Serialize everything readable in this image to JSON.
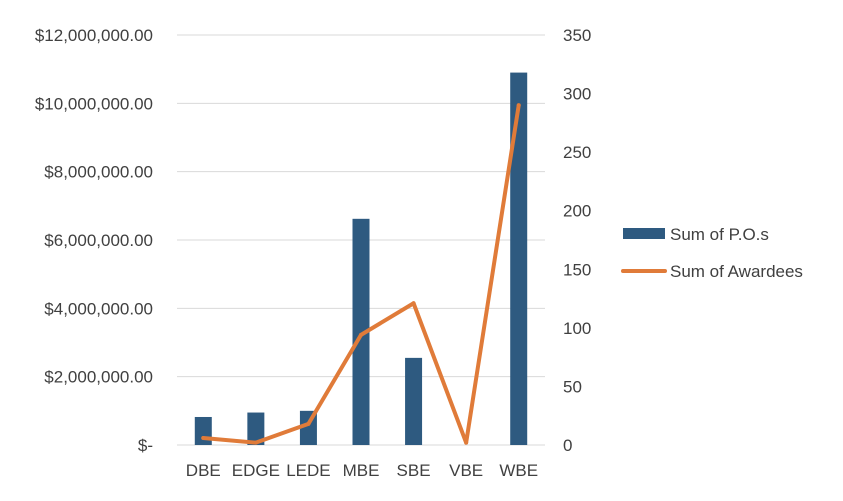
{
  "chart_data": {
    "type": "bar",
    "categories": [
      "DBE",
      "EDGE",
      "LEDE",
      "MBE",
      "SBE",
      "VBE",
      "WBE"
    ],
    "series": [
      {
        "name": "Sum of P.O.s",
        "type": "bar",
        "axis": "left",
        "values": [
          820000,
          950000,
          1000000,
          6620000,
          2550000,
          0,
          10900000
        ]
      },
      {
        "name": "Sum of Awardees",
        "type": "line",
        "axis": "right",
        "values": [
          6,
          2,
          18,
          94,
          121,
          2,
          290
        ]
      }
    ],
    "y_left": {
      "ylim": [
        0,
        12000000
      ],
      "ticks": [
        0,
        2000000,
        4000000,
        6000000,
        8000000,
        10000000,
        12000000
      ],
      "tick_labels": [
        "$-",
        "$2,000,000.00",
        "$4,000,000.00",
        "$6,000,000.00",
        "$8,000,000.00",
        "$10,000,000.00",
        "$12,000,000.00"
      ]
    },
    "y_right": {
      "ylim": [
        0,
        350
      ],
      "ticks": [
        0,
        50,
        100,
        150,
        200,
        250,
        300,
        350
      ],
      "tick_labels": [
        "0",
        "50",
        "100",
        "150",
        "200",
        "250",
        "300",
        "350"
      ]
    },
    "grid": true,
    "legend_position": "right",
    "colors": {
      "bar": "#2e5a80",
      "line": "#e07b39",
      "grid": "#d9d9d9",
      "text": "#404040"
    }
  }
}
